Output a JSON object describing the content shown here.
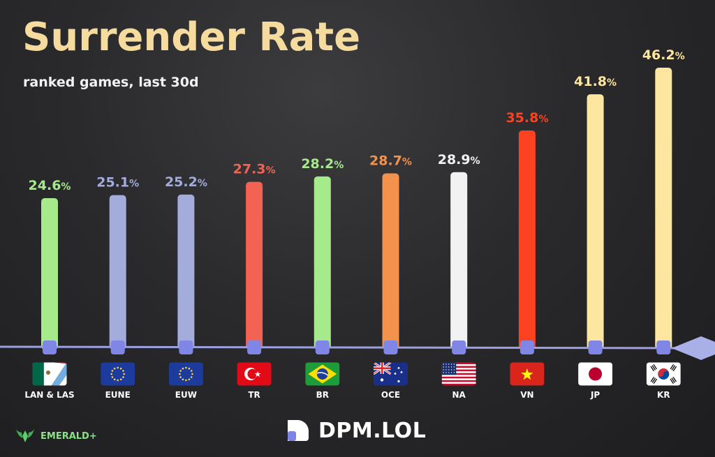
{
  "title": "Surrender Rate",
  "subtitle": "ranked games, last 30d",
  "chart_data": {
    "type": "bar",
    "categories": [
      "LAN & LAS",
      "EUNE",
      "EUW",
      "TR",
      "BR",
      "OCE",
      "NA",
      "VN",
      "JP",
      "KR"
    ],
    "values": [
      24.6,
      25.1,
      25.2,
      27.3,
      28.2,
      28.7,
      28.9,
      35.8,
      41.8,
      46.2
    ],
    "value_suffix": "%",
    "colors": [
      "#a6ea8c",
      "#a4acdc",
      "#a4acdc",
      "#f36252",
      "#a6ea8c",
      "#f2924c",
      "#f2f2f2",
      "#fb4322",
      "#fde6a0",
      "#fde6a0"
    ],
    "flags": [
      "mexico-argentina-flag-icon",
      "eu-flag-icon",
      "eu-flag-icon",
      "turkey-flag-icon",
      "brazil-flag-icon",
      "australia-flag-icon",
      "usa-flag-icon",
      "vietnam-flag-icon",
      "japan-flag-icon",
      "korea-flag-icon"
    ],
    "xlabel": "",
    "ylabel": "",
    "ylim": [
      0,
      46.2
    ],
    "legend": "none",
    "grid": false
  },
  "footer": {
    "tier": "EMERALD+",
    "tier_icon": "emerald-wings-icon",
    "brand": "DPM.LOL",
    "brand_icon": "dpm-logo-icon"
  }
}
